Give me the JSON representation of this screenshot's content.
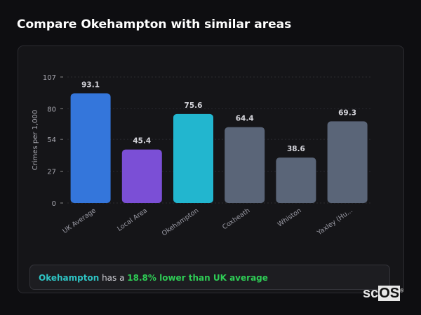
{
  "title": "Compare Okehampton with similar areas",
  "summary": {
    "area": "Okehampton",
    "middle": " has a ",
    "comparison": "18.8% lower than UK average"
  },
  "logo": {
    "text_a": "sc",
    "text_b": "OS",
    "mark": "®"
  },
  "colors": {
    "uk": "#3476db",
    "local": "#7b4fd6",
    "focus": "#22b6cf",
    "other": "#5a6578",
    "positive": "#2ecc55"
  },
  "chart_data": {
    "type": "bar",
    "categories": [
      "UK Average",
      "Local Area",
      "Okehampton",
      "Coxheath",
      "Whiston",
      "Yaxley (Hu..."
    ],
    "values": [
      93.1,
      45.4,
      75.6,
      64.4,
      38.6,
      69.3
    ],
    "value_labels": [
      "93.1",
      "45.4",
      "75.6",
      "64.4",
      "38.6",
      "69.3"
    ],
    "bar_colors": [
      "#3476db",
      "#7b4fd6",
      "#22b6cf",
      "#5a6578",
      "#5a6578",
      "#5a6578"
    ],
    "ylabel": "Crimes per 1,000",
    "xlabel": "",
    "yticks": [
      0,
      27,
      54,
      80,
      107
    ],
    "ylim": [
      0,
      107
    ],
    "grid": true,
    "legend": "none"
  }
}
